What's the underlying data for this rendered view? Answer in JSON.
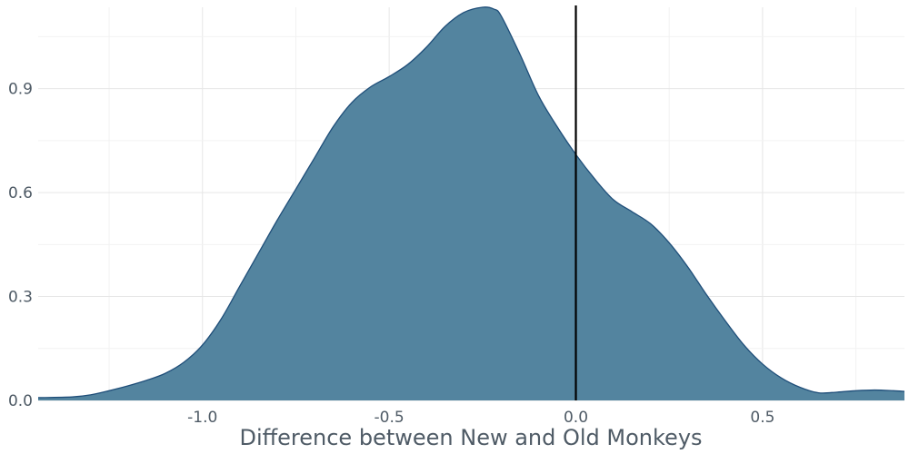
{
  "chart_data": {
    "type": "area",
    "title": "",
    "xlabel": "Difference between New and Old Monkeys",
    "ylabel": "",
    "xlim": [
      -1.44,
      0.88
    ],
    "ylim": [
      0,
      1.135
    ],
    "x_ticks": [
      -1.0,
      -0.5,
      0.0,
      0.5
    ],
    "x_tick_labels": [
      "-1.0",
      "-0.5",
      "0.0",
      "0.5"
    ],
    "y_ticks": [
      0.0,
      0.3,
      0.6,
      0.9
    ],
    "y_tick_labels": [
      "0.0",
      "0.3",
      "0.6",
      "0.9"
    ],
    "grid": true,
    "fill_color": "#53849f",
    "line_color": "#1f4e79",
    "reference_line": {
      "x": 0.0,
      "color": "#000000"
    },
    "series": [
      {
        "x": [
          -1.44,
          -1.35,
          -1.3,
          -1.25,
          -1.2,
          -1.15,
          -1.1,
          -1.05,
          -1.0,
          -0.95,
          -0.9,
          -0.85,
          -0.8,
          -0.75,
          -0.7,
          -0.65,
          -0.6,
          -0.55,
          -0.5,
          -0.45,
          -0.4,
          -0.35,
          -0.3,
          -0.25,
          -0.22,
          -0.2,
          -0.15,
          -0.1,
          -0.05,
          0.0,
          0.05,
          0.1,
          0.15,
          0.2,
          0.25,
          0.3,
          0.35,
          0.4,
          0.45,
          0.5,
          0.55,
          0.6,
          0.65,
          0.7,
          0.75,
          0.8,
          0.85,
          0.88
        ],
        "y": [
          0.008,
          0.01,
          0.016,
          0.028,
          0.042,
          0.058,
          0.078,
          0.11,
          0.16,
          0.235,
          0.33,
          0.425,
          0.52,
          0.61,
          0.7,
          0.79,
          0.86,
          0.905,
          0.935,
          0.97,
          1.02,
          1.08,
          1.12,
          1.135,
          1.13,
          1.11,
          1.0,
          0.88,
          0.79,
          0.71,
          0.64,
          0.58,
          0.545,
          0.51,
          0.455,
          0.385,
          0.305,
          0.23,
          0.16,
          0.105,
          0.065,
          0.038,
          0.022,
          0.024,
          0.028,
          0.03,
          0.028,
          0.026
        ]
      }
    ]
  }
}
